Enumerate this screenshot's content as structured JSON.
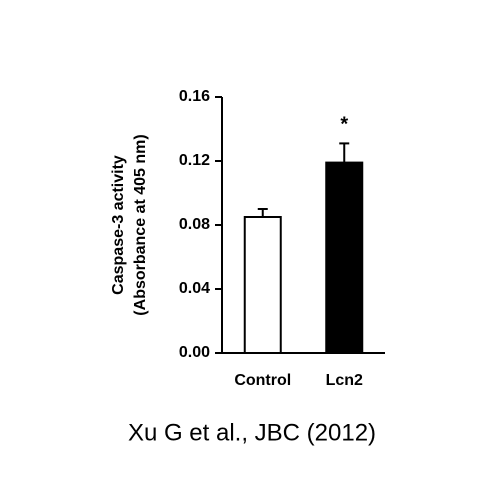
{
  "chart_data": {
    "type": "bar",
    "y_label": [
      "Caspase-3 activity",
      "(Absorbance at 405 nm)"
    ],
    "categories": [
      "Control",
      "Lcn2"
    ],
    "values": [
      0.085,
      0.119
    ],
    "errors": [
      0.005,
      0.012
    ],
    "colors": [
      "#ffffff",
      "#000000"
    ],
    "annotation": "*",
    "ylim": [
      0,
      0.16
    ],
    "yticks": [
      {
        "value": 0,
        "label": "0.00"
      },
      {
        "value": 0.04,
        "label": "0.04"
      },
      {
        "value": 0.08,
        "label": "0.08"
      },
      {
        "value": 0.12,
        "label": "0.12"
      },
      {
        "value": 0.16,
        "label": "0.16"
      }
    ],
    "source": "Xu G et al., JBC (2012)"
  }
}
